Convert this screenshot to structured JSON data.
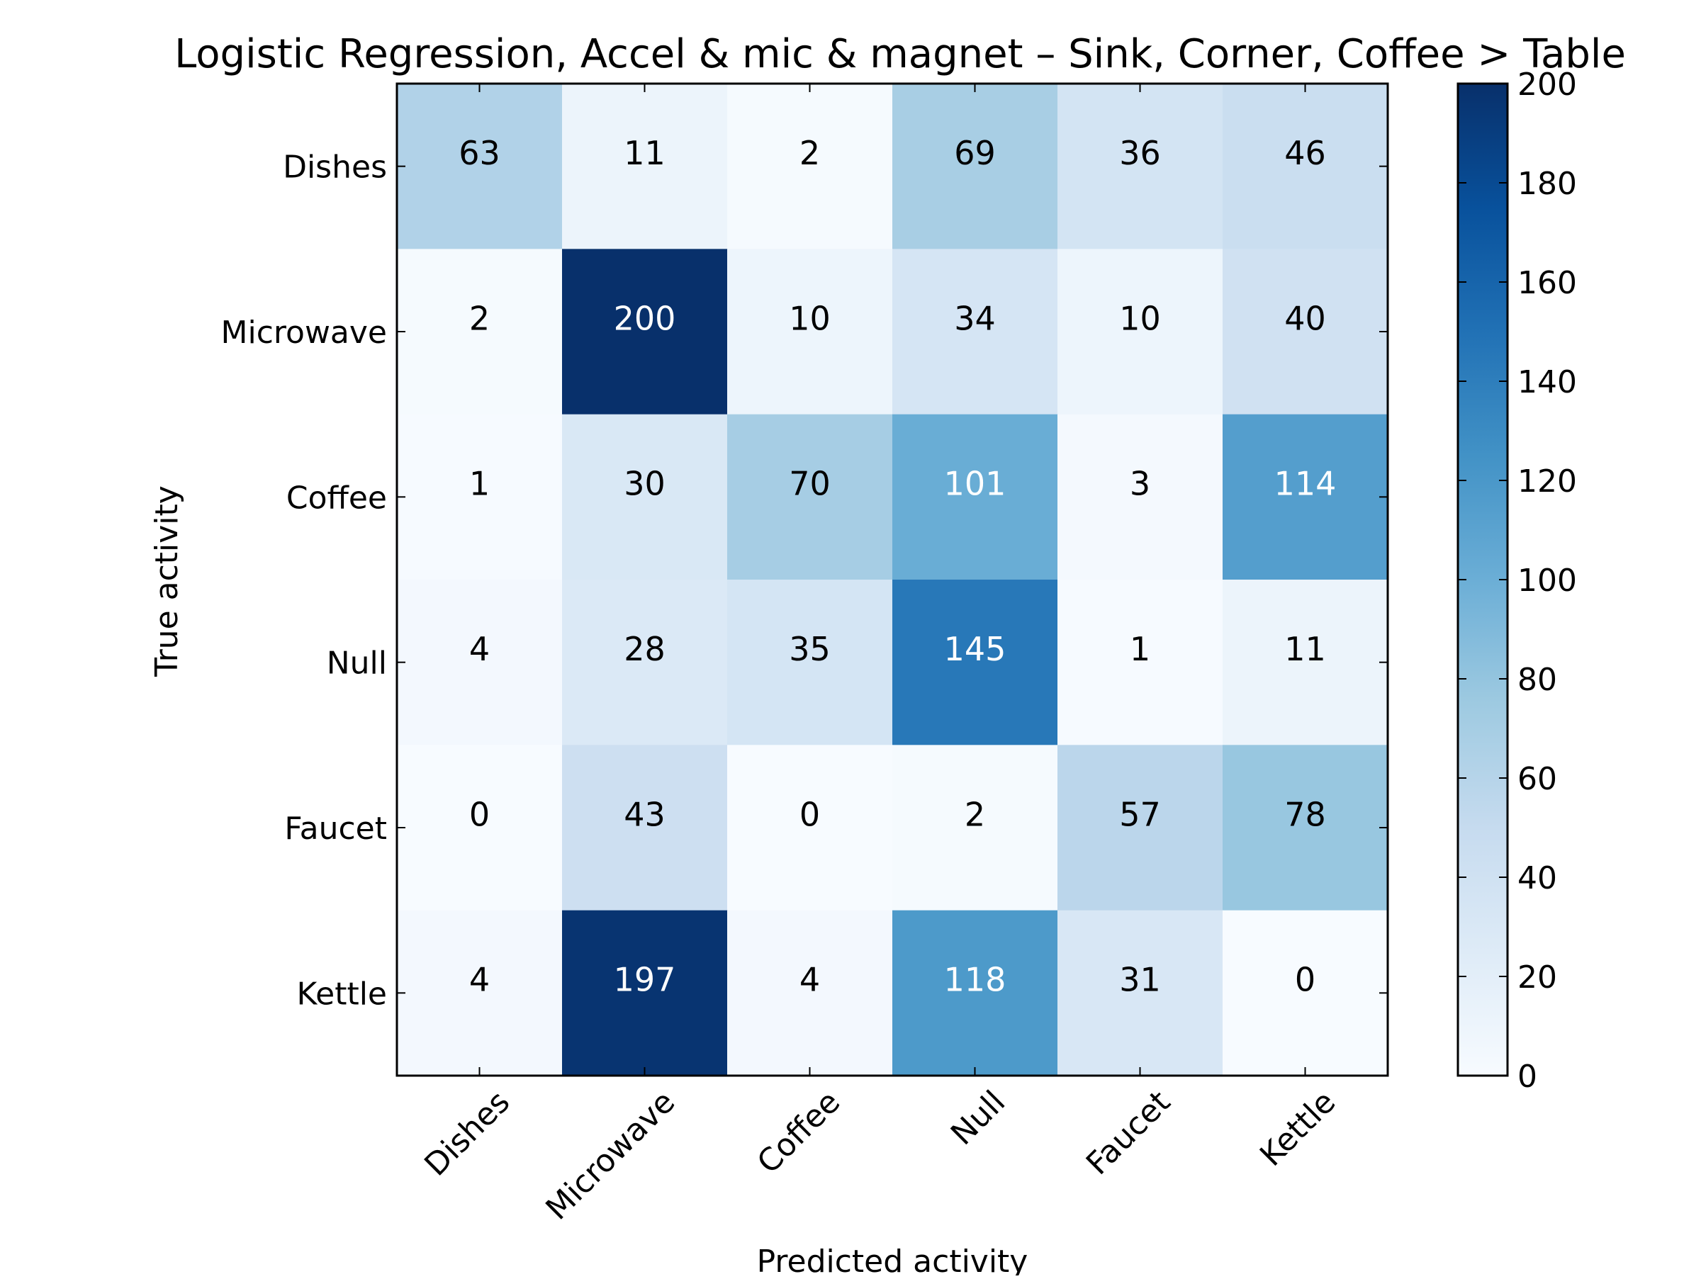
{
  "chart_data": {
    "type": "heatmap",
    "title": "Logistic Regression, Accel & mic & magnet – Sink, Corner, Coffee > Table",
    "xlabel": "Predicted activity",
    "ylabel": "True activity",
    "x_categories": [
      "Dishes",
      "Microwave",
      "Coffee",
      "Null",
      "Faucet",
      "Kettle"
    ],
    "y_categories": [
      "Dishes",
      "Microwave",
      "Coffee",
      "Null",
      "Faucet",
      "Kettle"
    ],
    "values": [
      [
        63,
        11,
        2,
        69,
        36,
        46
      ],
      [
        2,
        200,
        10,
        34,
        10,
        40
      ],
      [
        1,
        30,
        70,
        101,
        3,
        114
      ],
      [
        4,
        28,
        35,
        145,
        1,
        11
      ],
      [
        0,
        43,
        0,
        2,
        57,
        78
      ],
      [
        4,
        197,
        4,
        118,
        31,
        0
      ]
    ],
    "colorscale": "Blues",
    "color_range": [
      0,
      200
    ],
    "colorbar_ticks": [
      "0",
      "20",
      "40",
      "60",
      "80",
      "100",
      "120",
      "140",
      "160",
      "180",
      "200"
    ],
    "colors": {
      "low": "#f7fbff",
      "high": "#08306b",
      "axis": "#000000",
      "text_dark": "#000000",
      "text_light": "#ffffff"
    }
  }
}
